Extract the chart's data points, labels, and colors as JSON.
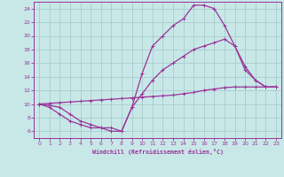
{
  "xlabel": "Windchill (Refroidissement éolien,°C)",
  "background_color": "#c8e8e8",
  "grid_color": "#aacccc",
  "line_color": "#993399",
  "xlim": [
    -0.5,
    23.5
  ],
  "ylim": [
    5.0,
    25.0
  ],
  "xticks": [
    0,
    1,
    2,
    3,
    4,
    5,
    6,
    7,
    8,
    9,
    10,
    11,
    12,
    13,
    14,
    15,
    16,
    17,
    18,
    19,
    20,
    21,
    22,
    23
  ],
  "yticks": [
    6,
    8,
    10,
    12,
    14,
    16,
    18,
    20,
    22,
    24
  ],
  "curve1_x": [
    0,
    1,
    2,
    3,
    4,
    5,
    6,
    7,
    8,
    9,
    10,
    11,
    12,
    13,
    14,
    15,
    16,
    17,
    18,
    19,
    20,
    21,
    22,
    23
  ],
  "curve1_y": [
    10,
    9.5,
    8.5,
    7.5,
    7.0,
    6.5,
    6.5,
    6.0,
    6.0,
    9.5,
    14.5,
    18.5,
    20.0,
    21.5,
    22.5,
    24.5,
    24.5,
    24.0,
    21.5,
    18.5,
    15.0,
    13.5,
    12.5,
    12.5
  ],
  "curve2_x": [
    0,
    1,
    2,
    3,
    4,
    5,
    6,
    7,
    8,
    9,
    10,
    11,
    12,
    13,
    14,
    15,
    16,
    17,
    18,
    19,
    20,
    21,
    22,
    23
  ],
  "curve2_y": [
    10,
    9.8,
    9.5,
    8.5,
    7.5,
    7.0,
    6.5,
    6.5,
    6.0,
    9.5,
    11.5,
    13.5,
    15.0,
    16.0,
    17.0,
    18.0,
    18.5,
    19.0,
    19.5,
    18.5,
    15.5,
    13.5,
    12.5,
    12.5
  ],
  "curve3_x": [
    0,
    1,
    2,
    3,
    4,
    5,
    6,
    7,
    8,
    9,
    10,
    11,
    12,
    13,
    14,
    15,
    16,
    17,
    18,
    19,
    20,
    21,
    22,
    23
  ],
  "curve3_y": [
    10,
    10.1,
    10.2,
    10.3,
    10.4,
    10.5,
    10.6,
    10.7,
    10.8,
    10.9,
    11.0,
    11.1,
    11.2,
    11.3,
    11.5,
    11.7,
    12.0,
    12.2,
    12.4,
    12.5,
    12.5,
    12.5,
    12.5,
    12.5
  ]
}
